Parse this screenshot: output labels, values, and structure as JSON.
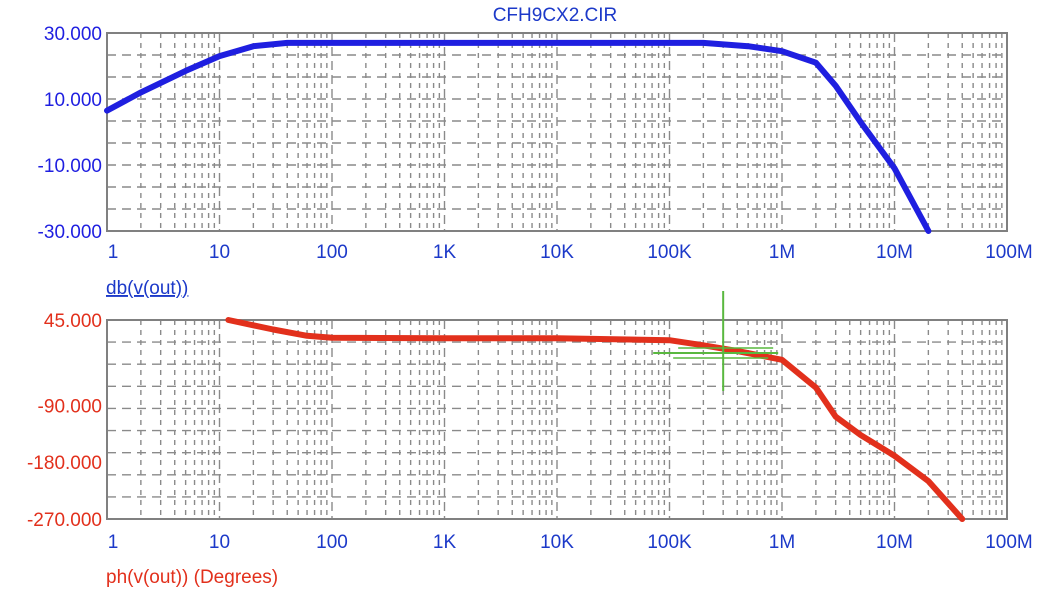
{
  "chart_data": [
    {
      "type": "line",
      "title": "CFH9CX2.CIR",
      "xscale": "log",
      "xlim": [
        1,
        100000000
      ],
      "ylim": [
        -30,
        30
      ],
      "xticks": [
        {
          "value": 1,
          "label": "1"
        },
        {
          "value": 10,
          "label": "10"
        },
        {
          "value": 100,
          "label": "100"
        },
        {
          "value": 1000,
          "label": "1K"
        },
        {
          "value": 10000,
          "label": "10K"
        },
        {
          "value": 100000,
          "label": "100K"
        },
        {
          "value": 1000000,
          "label": "1M"
        },
        {
          "value": 10000000,
          "label": "10M"
        },
        {
          "value": 100000000,
          "label": "100M"
        }
      ],
      "yticks": [
        {
          "value": 30,
          "label": "30.000"
        },
        {
          "value": 10,
          "label": "10.000"
        },
        {
          "value": -10,
          "label": "-10.000"
        },
        {
          "value": -30,
          "label": "-30.000"
        }
      ],
      "grid": true,
      "series": [
        {
          "name": "db(v(out))",
          "color": "#1f1fe0",
          "x": [
            1,
            2,
            5,
            10,
            20,
            40,
            100,
            1000,
            10000,
            100000,
            200000,
            500000,
            1000000,
            2000000,
            3000000,
            5000000,
            10000000,
            20000000
          ],
          "y": [
            6.5,
            12,
            18.5,
            23,
            26,
            27,
            27,
            27,
            27,
            27,
            27,
            26,
            24.5,
            21,
            14,
            3,
            -11,
            -30
          ]
        }
      ]
    },
    {
      "type": "line",
      "xscale": "log",
      "xlim": [
        1,
        100000000
      ],
      "ylim": [
        -270,
        45
      ],
      "xticks": [
        {
          "value": 1,
          "label": "1"
        },
        {
          "value": 10,
          "label": "10"
        },
        {
          "value": 100,
          "label": "100"
        },
        {
          "value": 1000,
          "label": "1K"
        },
        {
          "value": 10000,
          "label": "10K"
        },
        {
          "value": 100000,
          "label": "100K"
        },
        {
          "value": 1000000,
          "label": "1M"
        },
        {
          "value": 10000000,
          "label": "10M"
        },
        {
          "value": 100000000,
          "label": "100M"
        }
      ],
      "yticks": [
        {
          "value": 45,
          "label": "45.000"
        },
        {
          "value": -90,
          "label": "-90.000"
        },
        {
          "value": -180,
          "label": "-180.000"
        },
        {
          "value": -270,
          "label": "-270.000"
        }
      ],
      "grid": true,
      "series": [
        {
          "name": "ph(v(out)) (Degrees)",
          "color": "#e2301c",
          "x": [
            12,
            30,
            60,
            100,
            1000,
            10000,
            100000,
            200000,
            400000,
            1000000,
            2000000,
            3000000,
            5000000,
            10000000,
            20000000,
            40000000
          ],
          "y": [
            45,
            30,
            20,
            17,
            16,
            16,
            13,
            5,
            -4,
            -18,
            -62,
            -108,
            -137,
            -170,
            -210,
            -270
          ]
        }
      ],
      "cursor": {
        "x": 300000,
        "y": -4,
        "color": "#59b83f"
      }
    }
  ]
}
